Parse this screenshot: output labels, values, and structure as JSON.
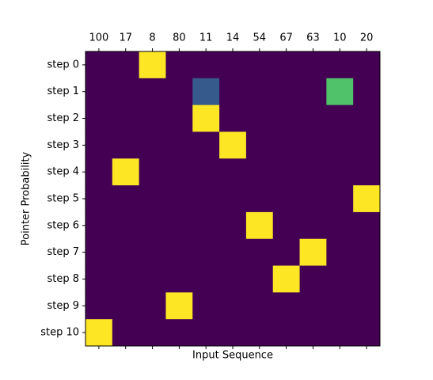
{
  "chart_data": {
    "type": "heatmap",
    "xlabel": "Input Sequence",
    "ylabel": "Pointer Probability",
    "x_categories": [
      "100",
      "17",
      "8",
      "80",
      "11",
      "14",
      "54",
      "67",
      "63",
      "10",
      "20"
    ],
    "y_categories": [
      "step 0",
      "step 1",
      "step 2",
      "step 3",
      "step 4",
      "step 5",
      "step 6",
      "step 7",
      "step 8",
      "step 9",
      "step 10"
    ],
    "values": [
      [
        0,
        0,
        1,
        0,
        0,
        0,
        0,
        0,
        0,
        0,
        0
      ],
      [
        0,
        0,
        0,
        0,
        0.28,
        0,
        0,
        0,
        0,
        0.72,
        0
      ],
      [
        0,
        0,
        0,
        0,
        1,
        0,
        0,
        0,
        0,
        0,
        0
      ],
      [
        0,
        0,
        0,
        0,
        0,
        1,
        0,
        0,
        0,
        0,
        0
      ],
      [
        0,
        1,
        0,
        0,
        0,
        0,
        0,
        0,
        0,
        0,
        0
      ],
      [
        0,
        0,
        0,
        0,
        0,
        0,
        0,
        0,
        0,
        0,
        1
      ],
      [
        0,
        0,
        0,
        0,
        0,
        0,
        1,
        0,
        0,
        0,
        0
      ],
      [
        0,
        0,
        0,
        0,
        0,
        0,
        0,
        0,
        1,
        0,
        0
      ],
      [
        0,
        0,
        0,
        0,
        0,
        0,
        0,
        1,
        0,
        0,
        0
      ],
      [
        0,
        0,
        0,
        1,
        0,
        0,
        0,
        0,
        0,
        0,
        0
      ],
      [
        1,
        0,
        0,
        0,
        0,
        0,
        0,
        0,
        0,
        0,
        0
      ]
    ],
    "colormap": "viridis",
    "clim": [
      0,
      1
    ]
  }
}
